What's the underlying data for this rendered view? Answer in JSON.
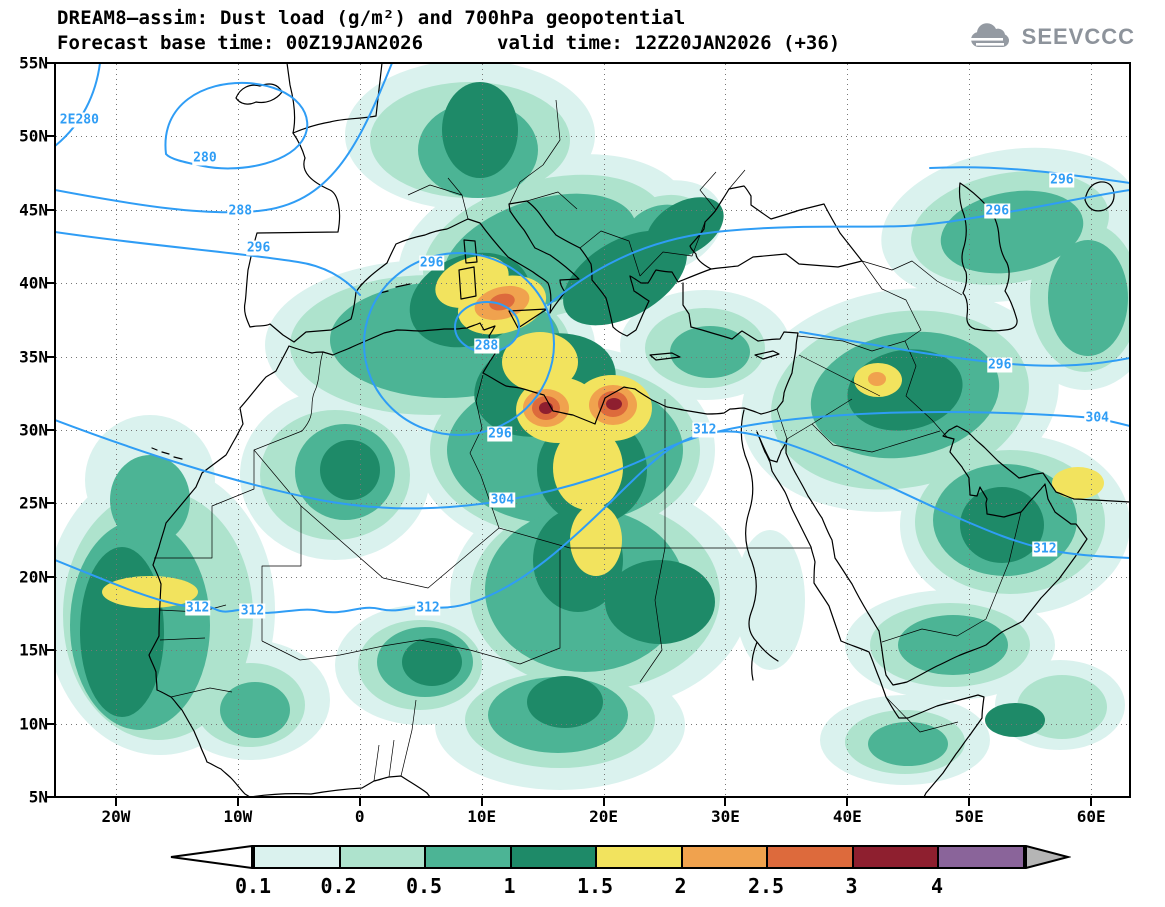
{
  "header": {
    "title": "DREAM8—assim: Dust load (g/m²) and 700hPa geopotential",
    "forecast_base": "Forecast base time: 00Z19JAN2026",
    "valid_time": "valid time: 12Z20JAN2026 (+36)",
    "logo_text": "SEEVCCC",
    "logo_icon": "cloud-icon",
    "logo_color": "#8d939b"
  },
  "chart_data": {
    "type": "heatmap",
    "subtype": "geographic filled-contour dust field with geopotential line contours",
    "title": "DREAM8-assim: Dust load (g/m2) and 700hPa geopotential",
    "x_axis": {
      "label": "longitude",
      "range_deg": [
        -25,
        63
      ],
      "ticks": [
        {
          "label": "20W",
          "lon": -20
        },
        {
          "label": "10W",
          "lon": -10
        },
        {
          "label": "0",
          "lon": 0
        },
        {
          "label": "10E",
          "lon": 10
        },
        {
          "label": "20E",
          "lon": 20
        },
        {
          "label": "30E",
          "lon": 30
        },
        {
          "label": "40E",
          "lon": 40
        },
        {
          "label": "50E",
          "lon": 50
        },
        {
          "label": "60E",
          "lon": 60
        }
      ]
    },
    "y_axis": {
      "label": "latitude",
      "range_deg": [
        5,
        55
      ],
      "ticks": [
        {
          "label": "55N",
          "lat": 55
        },
        {
          "label": "50N",
          "lat": 50
        },
        {
          "label": "45N",
          "lat": 45
        },
        {
          "label": "40N",
          "lat": 40
        },
        {
          "label": "35N",
          "lat": 35
        },
        {
          "label": "30N",
          "lat": 30
        },
        {
          "label": "25N",
          "lat": 25
        },
        {
          "label": "20N",
          "lat": 20
        },
        {
          "label": "15N",
          "lat": 15
        },
        {
          "label": "10N",
          "lat": 10
        },
        {
          "label": "5N",
          "lat": 5
        }
      ]
    },
    "grid": "dotted, 10deg lon x 5deg lat",
    "dust_levels_g_m2": [
      0.1,
      0.2,
      0.5,
      1,
      1.5,
      2,
      2.5,
      3,
      4
    ],
    "dust_level_colors": [
      "#ffffff",
      "#daf2ee",
      "#aee3cd",
      "#4cb495",
      "#1e8a68",
      "#f2e35e",
      "#f0a24e",
      "#dd6a3c",
      "#8e1f2f",
      "#8a649a"
    ],
    "geopotential_contours_dam": [
      280,
      288,
      296,
      304,
      312
    ],
    "contour_line_color": "#2f9df5",
    "contour_labels": [
      {
        "v": "2E280",
        "lon": -23.0,
        "lat": 51.1
      },
      {
        "v": "280",
        "lon": -12.7,
        "lat": 48.5
      },
      {
        "v": "288",
        "lon": -9.8,
        "lat": 44.9
      },
      {
        "v": "296",
        "lon": -8.3,
        "lat": 42.4
      },
      {
        "v": "296",
        "lon": 5.9,
        "lat": 41.4
      },
      {
        "v": "288",
        "lon": 10.4,
        "lat": 35.7
      },
      {
        "v": "296",
        "lon": 11.5,
        "lat": 29.7
      },
      {
        "v": "304",
        "lon": 11.7,
        "lat": 25.2
      },
      {
        "v": "312",
        "lon": -13.3,
        "lat": 17.9
      },
      {
        "v": "312",
        "lon": -8.8,
        "lat": 17.7
      },
      {
        "v": "312",
        "lon": 5.6,
        "lat": 17.9
      },
      {
        "v": "312",
        "lon": 28.3,
        "lat": 30.0
      },
      {
        "v": "296",
        "lon": 52.5,
        "lat": 34.4
      },
      {
        "v": "304",
        "lon": 60.5,
        "lat": 30.8
      },
      {
        "v": "312",
        "lon": 56.2,
        "lat": 21.9
      },
      {
        "v": "296",
        "lon": 52.3,
        "lat": 44.9
      },
      {
        "v": "296",
        "lon": 57.6,
        "lat": 47.0
      }
    ],
    "dust_maxima": [
      {
        "location": "NW Libya ~15E,31N",
        "value_g_m2": ">3"
      },
      {
        "location": "NE Libya ~21E,31N",
        "value_g_m2": ">3"
      },
      {
        "location": "Tunisia ~11E,33.5N",
        "value_g_m2": "2.5-3"
      },
      {
        "location": "Iraq ~43E,33.5N",
        "value_g_m2": "2-2.5"
      },
      {
        "location": "Mauritania ~13W,19.5N",
        "value_g_m2": "1.5-2"
      },
      {
        "location": "Strait of Hormuz ~57E,27N",
        "value_g_m2": "1.5-2"
      }
    ]
  },
  "colorbar": {
    "labels": [
      "0.1",
      "0.2",
      "0.5",
      "1",
      "1.5",
      "2",
      "2.5",
      "3",
      "4"
    ],
    "cell_colors": [
      "#daf2ee",
      "#aee3cd",
      "#4cb495",
      "#1e8a68",
      "#f2e35e",
      "#f0a24e",
      "#dd6a3c",
      "#8e1f2f",
      "#8a649a"
    ],
    "left_arrow_color": "#ffffff",
    "right_arrow_color": "#b5b5b5"
  }
}
